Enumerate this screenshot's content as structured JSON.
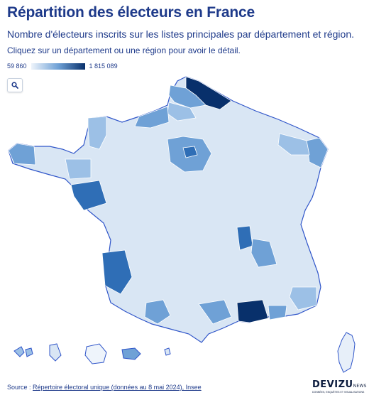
{
  "header": {
    "title": "Répartition des électeurs en France",
    "subtitle": "Nombre d'électeurs inscrits sur les listes principales par département et région.",
    "hint": "Cliquez sur un département ou une région pour avoir le détail."
  },
  "legend": {
    "min_label": "59 860",
    "max_label": "1 815 089",
    "min_value": 59860,
    "max_value": 1815089
  },
  "colors": {
    "low": "#eef4fb",
    "mid": "#6fa1d6",
    "high": "#08306b",
    "region_border": "#2f55c9",
    "dept_border": "#ffffff"
  },
  "controls": {
    "search_icon": "search-icon"
  },
  "source": {
    "prefix": "Source : ",
    "link_text": "Répertoire électoral unique (données au 8 mai 2024), Insee"
  },
  "brand": {
    "name": "DEVIZU",
    "suffix": "NEWS",
    "tagline": "DONNÉES, ENQUÊTES ET VISUALISATIONS"
  }
}
